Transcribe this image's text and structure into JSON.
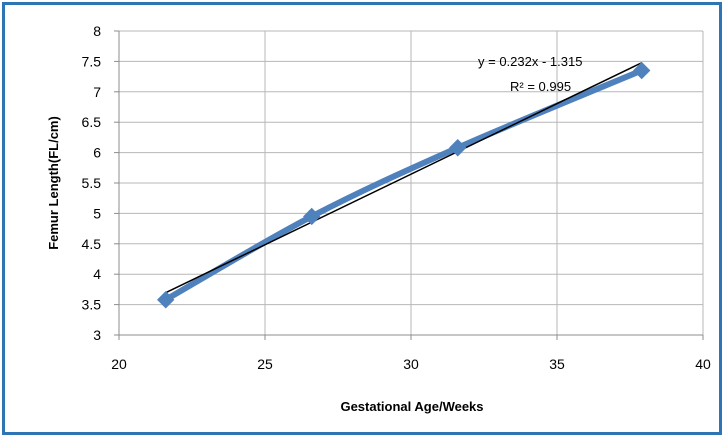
{
  "chart_data": {
    "type": "line",
    "title": "",
    "xlabel": "Gestational Age/Weeks",
    "ylabel": "Femur Length(FL/cm)",
    "xlim": [
      20,
      40
    ],
    "ylim": [
      3,
      8
    ],
    "x_ticks": [
      "20",
      "25",
      "30",
      "35",
      "40"
    ],
    "y_ticks": [
      "3",
      "3.5",
      "4",
      "4.5",
      "5",
      "5.5",
      "6",
      "6.5",
      "7",
      "7.5",
      "8"
    ],
    "grid": true,
    "legend": "none",
    "series": [
      {
        "x": [
          21.6,
          26.6,
          31.6,
          37.9
        ],
        "y": [
          3.58,
          4.95,
          6.08,
          7.35
        ],
        "color": "#4f81bd",
        "marker": "diamond"
      }
    ],
    "trendline": {
      "type": "linear",
      "slope": 0.232,
      "intercept": -1.315,
      "x_range": [
        21.6,
        37.9
      ],
      "color": "#000000",
      "equation_label": "y = 0.232x - 1.315",
      "r_squared_label": "R² = 0.995"
    }
  }
}
